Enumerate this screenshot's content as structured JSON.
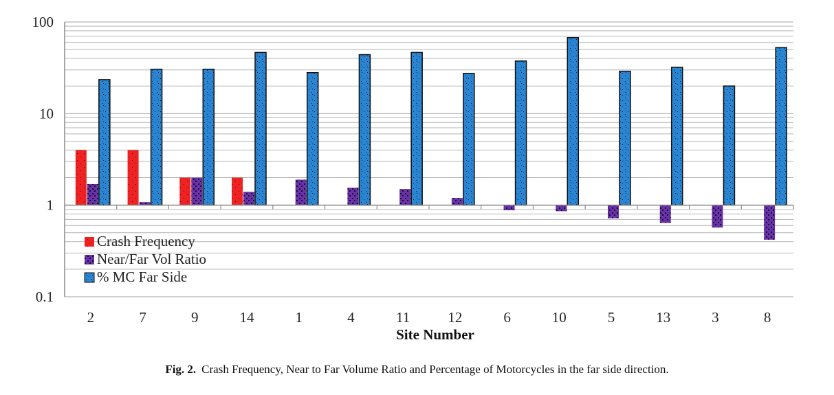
{
  "colors": {
    "crash": "#ee2222",
    "ratio": "#6a32a8",
    "mc": "#2a86d2",
    "grid": "#b4b4b4",
    "axis": "#8a8a8a"
  },
  "chart_data": {
    "type": "bar",
    "xlabel": "Site Number",
    "ylabel": "",
    "yscale": "log",
    "ylim": [
      0.1,
      100
    ],
    "baseline": 1,
    "ytick_labels": [
      "100",
      "10",
      "1",
      "0.1"
    ],
    "ytick_values": [
      100,
      10,
      1,
      0.1
    ],
    "grid": true,
    "legend_position": "bottom-left",
    "categories": [
      "2",
      "7",
      "9",
      "14",
      "1",
      "4",
      "11",
      "12",
      "6",
      "10",
      "5",
      "13",
      "3",
      "8"
    ],
    "series": [
      {
        "name": "Crash Frequency",
        "color_key": "crash",
        "values": [
          4,
          4,
          2,
          2,
          0,
          0,
          0,
          0,
          0,
          0,
          0,
          0,
          0,
          0
        ]
      },
      {
        "name": "Near/Far Vol Ratio",
        "color_key": "ratio",
        "values": [
          1.7,
          1.08,
          2.0,
          1.4,
          1.9,
          1.55,
          1.5,
          1.2,
          0.88,
          0.86,
          0.72,
          0.64,
          0.57,
          0.42
        ]
      },
      {
        "name": "% MC Far Side",
        "color_key": "mc",
        "values": [
          23.5,
          30.5,
          30.5,
          46.5,
          28.0,
          44.0,
          46.5,
          27.5,
          37.5,
          67.5,
          29.0,
          32.0,
          20.0,
          52.5
        ]
      }
    ]
  },
  "caption": {
    "label": "Fig. 2.",
    "text": "Crash Frequency, Near to Far Volume Ratio and Percentage of Motorcycles in the far side direction."
  }
}
